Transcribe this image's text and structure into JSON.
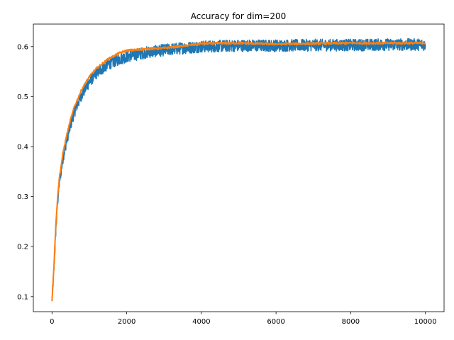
{
  "chart_data": {
    "type": "line",
    "title": "Accuracy for dim=200",
    "xlabel": "",
    "ylabel": "",
    "xlim": [
      -500,
      10500
    ],
    "ylim": [
      0.07,
      0.645
    ],
    "x_ticks": [
      0,
      2000,
      4000,
      6000,
      8000,
      10000
    ],
    "x_tick_labels": [
      "0",
      "2000",
      "4000",
      "6000",
      "8000",
      "10000"
    ],
    "y_ticks": [
      0.1,
      0.2,
      0.3,
      0.4,
      0.5,
      0.6
    ],
    "y_tick_labels": [
      "0.1",
      "0.2",
      "0.3",
      "0.4",
      "0.5",
      "0.6"
    ],
    "grid": false,
    "legend": "none",
    "series": [
      {
        "color": "#1f77b4",
        "line_width": 1.5,
        "x": [
          0,
          50,
          100,
          150,
          200,
          300,
          400,
          500,
          600,
          800,
          1000,
          1200,
          1500,
          1800,
          2000,
          2500,
          3000,
          3500,
          4000,
          5000,
          6000,
          7000,
          8000,
          9000,
          10000
        ],
        "values": [
          0.095,
          0.15,
          0.23,
          0.29,
          0.33,
          0.38,
          0.415,
          0.445,
          0.47,
          0.505,
          0.53,
          0.548,
          0.565,
          0.575,
          0.58,
          0.588,
          0.593,
          0.597,
          0.6,
          0.602,
          0.602,
          0.603,
          0.603,
          0.604,
          0.604
        ],
        "noise_band": 0.012
      },
      {
        "color": "#ff7f0e",
        "line_width": 2,
        "x": [
          0,
          50,
          100,
          150,
          200,
          300,
          400,
          500,
          600,
          800,
          1000,
          1200,
          1500,
          1800,
          2000,
          2500,
          3000,
          3500,
          4000,
          5000,
          6000,
          7000,
          8000,
          9000,
          10000
        ],
        "values": [
          0.092,
          0.16,
          0.24,
          0.3,
          0.34,
          0.39,
          0.425,
          0.455,
          0.48,
          0.515,
          0.54,
          0.557,
          0.575,
          0.587,
          0.592,
          0.595,
          0.597,
          0.601,
          0.606,
          0.607,
          0.605,
          0.606,
          0.607,
          0.607,
          0.607
        ]
      }
    ]
  }
}
